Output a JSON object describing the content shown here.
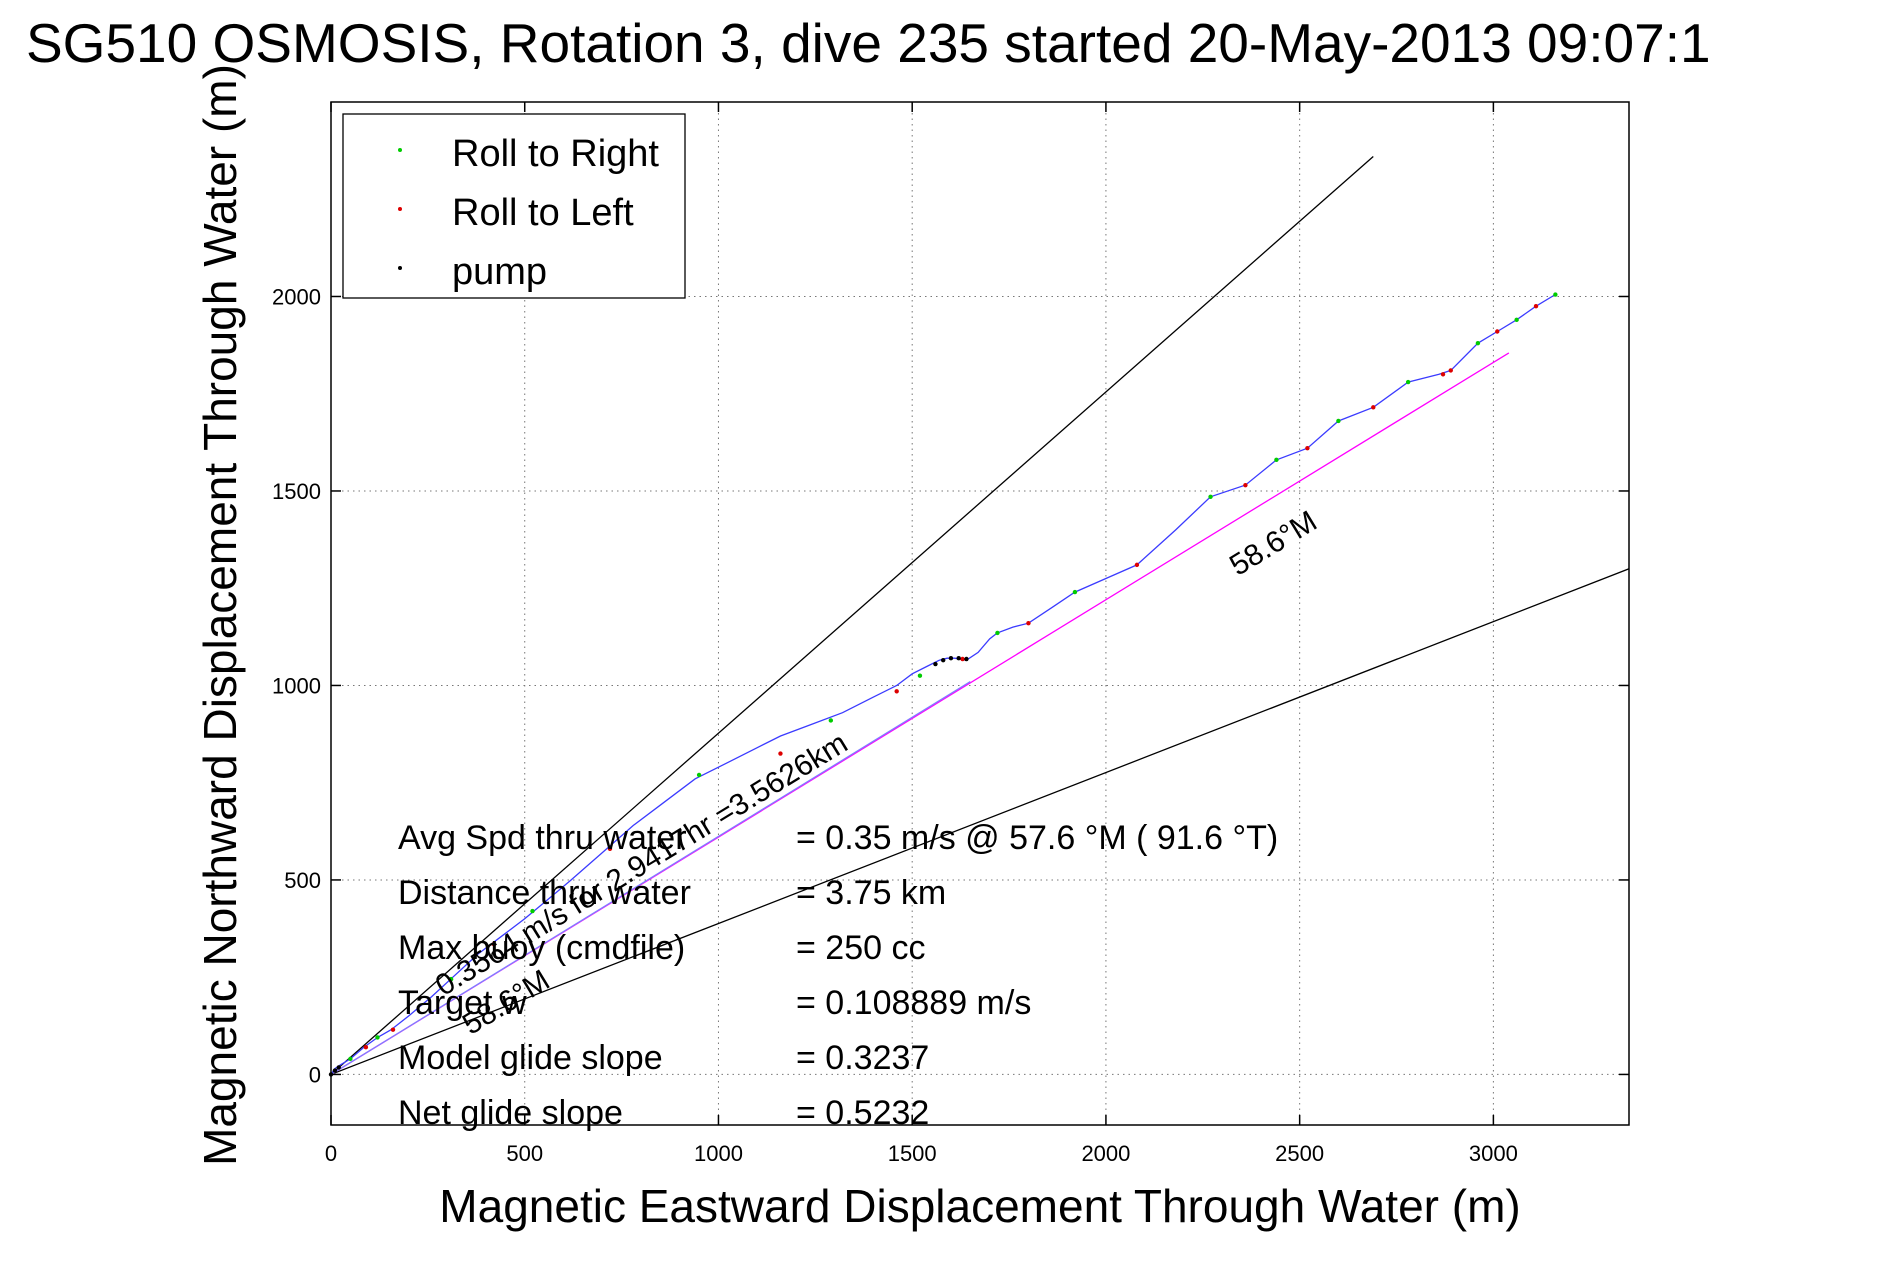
{
  "chart_data": {
    "type": "line",
    "title": "SG510 OSMOSIS, Rotation 3, dive 235 started 20-May-2013 09:07:1",
    "xlabel": "Magnetic Eastward Displacement Through Water (m)",
    "ylabel": "Magnetic Northward Displacement Through Water (m)",
    "xlim": [
      0,
      3350
    ],
    "ylim": [
      -130,
      2500
    ],
    "xticks": [
      0,
      500,
      1000,
      1500,
      2000,
      2500,
      3000
    ],
    "yticks": [
      0,
      500,
      1000,
      1500,
      2000
    ],
    "grid": true,
    "legend_position": "top-left",
    "legend": [
      {
        "label": "Roll to Right",
        "color": "#00cc00"
      },
      {
        "label": "Roll to Left",
        "color": "#dd0000"
      },
      {
        "label": "pump",
        "color": "#000000"
      }
    ],
    "track": {
      "color": "#3b3bff",
      "x": [
        0,
        10,
        25,
        50,
        85,
        120,
        155,
        200,
        260,
        320,
        380,
        440,
        500,
        560,
        620,
        700,
        780,
        860,
        940,
        1020,
        1100,
        1160,
        1240,
        1320,
        1400,
        1460,
        1500,
        1540,
        1570,
        1590,
        1610,
        1640,
        1670,
        1700,
        1720,
        1760,
        1800,
        1860,
        1920,
        2000,
        2080,
        2180,
        2270,
        2360,
        2440,
        2520,
        2600,
        2690,
        2780,
        2860,
        2890,
        2960,
        3010,
        3060,
        3110,
        3160
      ],
      "y": [
        0,
        15,
        25,
        40,
        70,
        95,
        115,
        150,
        200,
        255,
        310,
        355,
        400,
        450,
        500,
        570,
        640,
        700,
        760,
        800,
        840,
        870,
        900,
        930,
        970,
        1000,
        1030,
        1050,
        1065,
        1070,
        1070,
        1065,
        1085,
        1120,
        1135,
        1150,
        1160,
        1200,
        1240,
        1275,
        1310,
        1400,
        1485,
        1515,
        1580,
        1610,
        1680,
        1715,
        1780,
        1800,
        1810,
        1880,
        1910,
        1940,
        1975,
        2005
      ]
    },
    "roll_right_points": {
      "color": "#00cc00",
      "x": [
        50,
        120,
        310,
        520,
        950,
        1290,
        1520,
        1720,
        1920,
        2270,
        2440,
        2600,
        2780,
        2960,
        3060,
        3160
      ],
      "y": [
        40,
        95,
        245,
        420,
        770,
        910,
        1025,
        1135,
        1240,
        1485,
        1580,
        1680,
        1780,
        1880,
        1940,
        2005
      ]
    },
    "roll_left_points": {
      "color": "#dd0000",
      "x": [
        90,
        160,
        420,
        720,
        1160,
        1460,
        1630,
        1800,
        2080,
        2360,
        2520,
        2690,
        2870,
        2890,
        3010,
        3110
      ],
      "y": [
        70,
        115,
        335,
        580,
        825,
        985,
        1068,
        1160,
        1310,
        1515,
        1610,
        1715,
        1800,
        1810,
        1910,
        1975
      ]
    },
    "pump_points": {
      "color": "#000000",
      "x": [
        0,
        10,
        20,
        1560,
        1580,
        1600,
        1620,
        1640
      ],
      "y": [
        0,
        10,
        18,
        1055,
        1065,
        1070,
        1070,
        1068
      ]
    },
    "reference_lines": [
      {
        "name": "upper",
        "color": "#000000",
        "x": [
          0,
          2690
        ],
        "y": [
          0,
          2360
        ]
      },
      {
        "name": "lower",
        "color": "#000000",
        "x": [
          0,
          3350
        ],
        "y": [
          0,
          1300
        ]
      },
      {
        "name": "course",
        "color": "#ff00ff",
        "x": [
          0,
          3040
        ],
        "y": [
          0,
          1855
        ]
      },
      {
        "name": "target",
        "color": "#8080ff",
        "x": [
          0,
          1650
        ],
        "y": [
          0,
          1010
        ]
      }
    ],
    "annotations": [
      {
        "text": "58.6°M",
        "x": 2340,
        "y": 1280,
        "angle": 31.4
      },
      {
        "text": "0.3564 m/s for 2.9417hr =3.5626km",
        "x": 290,
        "y": 200,
        "angle": 31.4
      },
      {
        "text": "58.6°M",
        "x": 360,
        "y": 100,
        "angle": 31.4
      }
    ],
    "stats": [
      {
        "label": "Avg Spd thru water",
        "value": "=  0.35 m/s @  57.6 °M ( 91.6 °T)"
      },
      {
        "label": "Distance thru water",
        "value": "=  3.75 km"
      },
      {
        "label": "Max buoy (cmdfile)",
        "value": "= 250 cc"
      },
      {
        "label": "Target w",
        "value": "= 0.108889 m/s"
      },
      {
        "label": "Model glide slope",
        "value": "= 0.3237"
      },
      {
        "label": "Net glide slope",
        "value": "= 0.5232"
      }
    ]
  }
}
